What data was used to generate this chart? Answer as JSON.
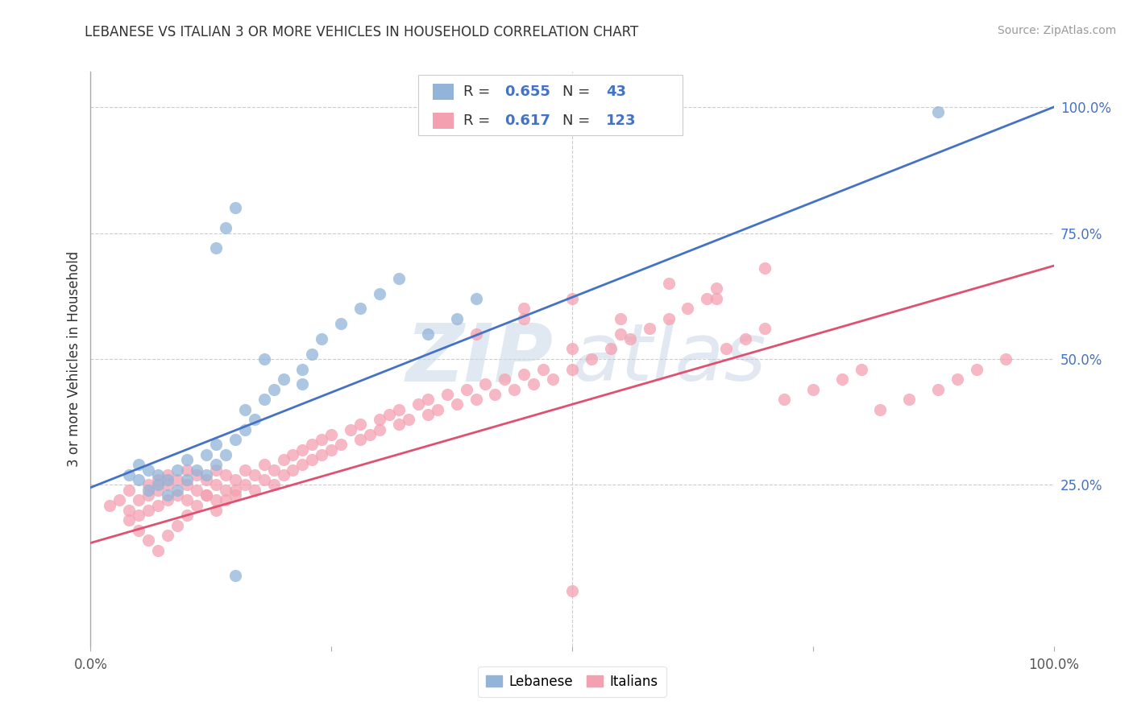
{
  "title": "LEBANESE VS ITALIAN 3 OR MORE VEHICLES IN HOUSEHOLD CORRELATION CHART",
  "source": "Source: ZipAtlas.com",
  "ylabel": "3 or more Vehicles in Household",
  "xlim": [
    0.0,
    1.0
  ],
  "ylim": [
    -0.07,
    1.07
  ],
  "legend_R1": "0.655",
  "legend_N1": "43",
  "legend_R2": "0.617",
  "legend_N2": "123",
  "blue_color": "#92B4D8",
  "pink_color": "#F4A0B0",
  "blue_line_color": "#4472C4",
  "pink_line_color": "#E05070",
  "watermark_zip": "ZIP",
  "watermark_atlas": "atlas",
  "background_color": "#FFFFFF",
  "grid_color": "#CCCCCC",
  "blue_line_y_start": 0.245,
  "blue_line_y_end": 1.0,
  "pink_line_y_start": 0.135,
  "pink_line_y_end": 0.685,
  "blue_x": [
    0.04,
    0.05,
    0.05,
    0.06,
    0.06,
    0.07,
    0.07,
    0.08,
    0.08,
    0.09,
    0.09,
    0.1,
    0.1,
    0.11,
    0.12,
    0.12,
    0.13,
    0.13,
    0.14,
    0.15,
    0.16,
    0.16,
    0.17,
    0.18,
    0.19,
    0.2,
    0.22,
    0.23,
    0.24,
    0.26,
    0.28,
    0.3,
    0.32,
    0.35,
    0.38,
    0.4,
    0.13,
    0.14,
    0.15,
    0.18,
    0.22,
    0.88,
    0.15
  ],
  "blue_y": [
    0.27,
    0.26,
    0.29,
    0.24,
    0.28,
    0.25,
    0.27,
    0.23,
    0.26,
    0.24,
    0.28,
    0.26,
    0.3,
    0.28,
    0.27,
    0.31,
    0.29,
    0.33,
    0.31,
    0.34,
    0.36,
    0.4,
    0.38,
    0.42,
    0.44,
    0.46,
    0.48,
    0.51,
    0.54,
    0.57,
    0.6,
    0.63,
    0.66,
    0.55,
    0.58,
    0.62,
    0.72,
    0.76,
    0.8,
    0.5,
    0.45,
    0.99,
    0.07
  ],
  "pink_x": [
    0.02,
    0.03,
    0.04,
    0.04,
    0.05,
    0.05,
    0.06,
    0.06,
    0.06,
    0.07,
    0.07,
    0.07,
    0.08,
    0.08,
    0.08,
    0.09,
    0.09,
    0.1,
    0.1,
    0.1,
    0.11,
    0.11,
    0.12,
    0.12,
    0.13,
    0.13,
    0.13,
    0.14,
    0.14,
    0.15,
    0.15,
    0.16,
    0.16,
    0.17,
    0.17,
    0.18,
    0.18,
    0.19,
    0.19,
    0.2,
    0.2,
    0.21,
    0.21,
    0.22,
    0.22,
    0.23,
    0.23,
    0.24,
    0.24,
    0.25,
    0.25,
    0.26,
    0.27,
    0.28,
    0.28,
    0.29,
    0.3,
    0.3,
    0.31,
    0.32,
    0.32,
    0.33,
    0.34,
    0.35,
    0.35,
    0.36,
    0.37,
    0.38,
    0.39,
    0.4,
    0.41,
    0.42,
    0.43,
    0.44,
    0.45,
    0.46,
    0.47,
    0.48,
    0.5,
    0.52,
    0.54,
    0.56,
    0.58,
    0.6,
    0.62,
    0.64,
    0.65,
    0.66,
    0.68,
    0.7,
    0.72,
    0.75,
    0.78,
    0.8,
    0.82,
    0.85,
    0.88,
    0.9,
    0.92,
    0.95,
    0.45,
    0.5,
    0.55,
    0.6,
    0.65,
    0.7,
    0.4,
    0.45,
    0.5,
    0.55,
    0.04,
    0.05,
    0.06,
    0.07,
    0.08,
    0.09,
    0.1,
    0.11,
    0.12,
    0.13,
    0.14,
    0.15,
    0.5
  ],
  "pink_y": [
    0.21,
    0.22,
    0.2,
    0.24,
    0.19,
    0.22,
    0.2,
    0.23,
    0.25,
    0.21,
    0.24,
    0.26,
    0.22,
    0.25,
    0.27,
    0.23,
    0.26,
    0.22,
    0.25,
    0.28,
    0.24,
    0.27,
    0.23,
    0.26,
    0.22,
    0.25,
    0.28,
    0.24,
    0.27,
    0.23,
    0.26,
    0.25,
    0.28,
    0.24,
    0.27,
    0.26,
    0.29,
    0.25,
    0.28,
    0.27,
    0.3,
    0.28,
    0.31,
    0.29,
    0.32,
    0.3,
    0.33,
    0.31,
    0.34,
    0.32,
    0.35,
    0.33,
    0.36,
    0.34,
    0.37,
    0.35,
    0.38,
    0.36,
    0.39,
    0.37,
    0.4,
    0.38,
    0.41,
    0.39,
    0.42,
    0.4,
    0.43,
    0.41,
    0.44,
    0.42,
    0.45,
    0.43,
    0.46,
    0.44,
    0.47,
    0.45,
    0.48,
    0.46,
    0.48,
    0.5,
    0.52,
    0.54,
    0.56,
    0.58,
    0.6,
    0.62,
    0.64,
    0.52,
    0.54,
    0.56,
    0.42,
    0.44,
    0.46,
    0.48,
    0.4,
    0.42,
    0.44,
    0.46,
    0.48,
    0.5,
    0.6,
    0.62,
    0.58,
    0.65,
    0.62,
    0.68,
    0.55,
    0.58,
    0.52,
    0.55,
    0.18,
    0.16,
    0.14,
    0.12,
    0.15,
    0.17,
    0.19,
    0.21,
    0.23,
    0.2,
    0.22,
    0.24,
    0.04
  ]
}
